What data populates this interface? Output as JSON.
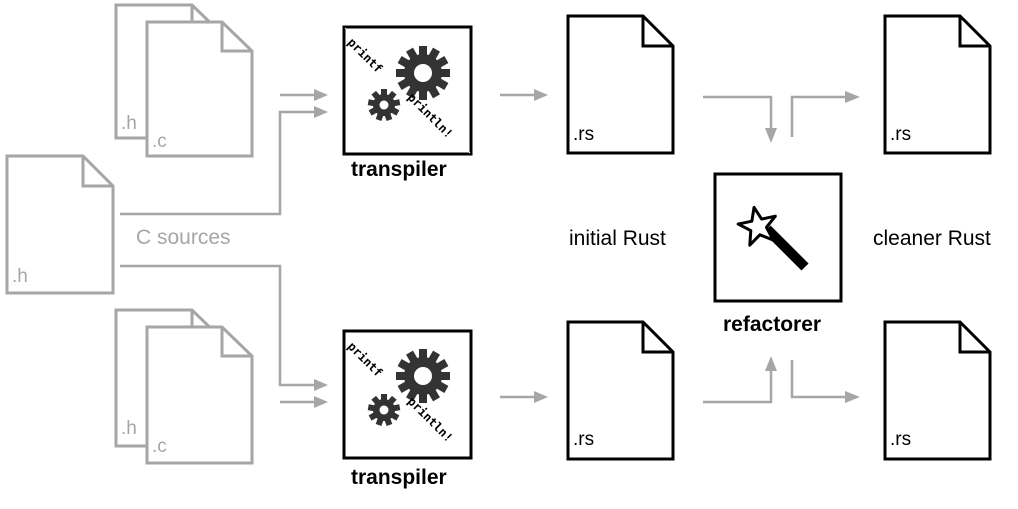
{
  "diagram": {
    "colors": {
      "ink": "#000000",
      "muted": "#a6a6a6",
      "gear": "#333333",
      "background": "#ffffff"
    },
    "sources": {
      "label": "C sources",
      "top_group": {
        "h_ext": ".h",
        "c_ext": ".c"
      },
      "shared_header": {
        "h_ext": ".h"
      },
      "bottom_group": {
        "h_ext": ".h",
        "c_ext": ".c"
      }
    },
    "transpiler": {
      "label": "transpiler",
      "icon": "gears-icon",
      "from_word": "printf",
      "to_word": "println!"
    },
    "initial_rust": {
      "label": "initial Rust",
      "top_file_ext": ".rs",
      "bottom_file_ext": ".rs"
    },
    "refactorer": {
      "label": "refactorer",
      "icon": "magic-wand-icon"
    },
    "cleaner_rust": {
      "label": "cleaner Rust",
      "top_file_ext": ".rs",
      "bottom_file_ext": ".rs"
    }
  }
}
